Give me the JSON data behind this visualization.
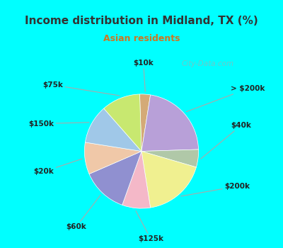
{
  "title": "Income distribution in Midland, TX (%)",
  "subtitle": "Asian residents",
  "title_color": "#333333",
  "subtitle_color": "#cc7722",
  "background_top": "#00ffff",
  "background_chart": "#e8f5ee",
  "slices": [
    {
      "label": "$10k",
      "value": 3,
      "color": "#d4aa77"
    },
    {
      "label": "> $200k",
      "value": 22,
      "color": "#b8a0d8"
    },
    {
      "label": "$40k",
      "value": 5,
      "color": "#b0c8a8"
    },
    {
      "label": "$200k",
      "value": 18,
      "color": "#f0f090"
    },
    {
      "label": "$125k",
      "value": 8,
      "color": "#f4b8c8"
    },
    {
      "label": "$60k",
      "value": 13,
      "color": "#9090d0"
    },
    {
      "label": "$20k",
      "value": 9,
      "color": "#f0c8a8"
    },
    {
      "label": "$150k",
      "value": 11,
      "color": "#a0c8e8"
    },
    {
      "label": "$75k",
      "value": 11,
      "color": "#c8e870"
    }
  ],
  "watermark": "City-Data.com",
  "startangle": 91.8
}
